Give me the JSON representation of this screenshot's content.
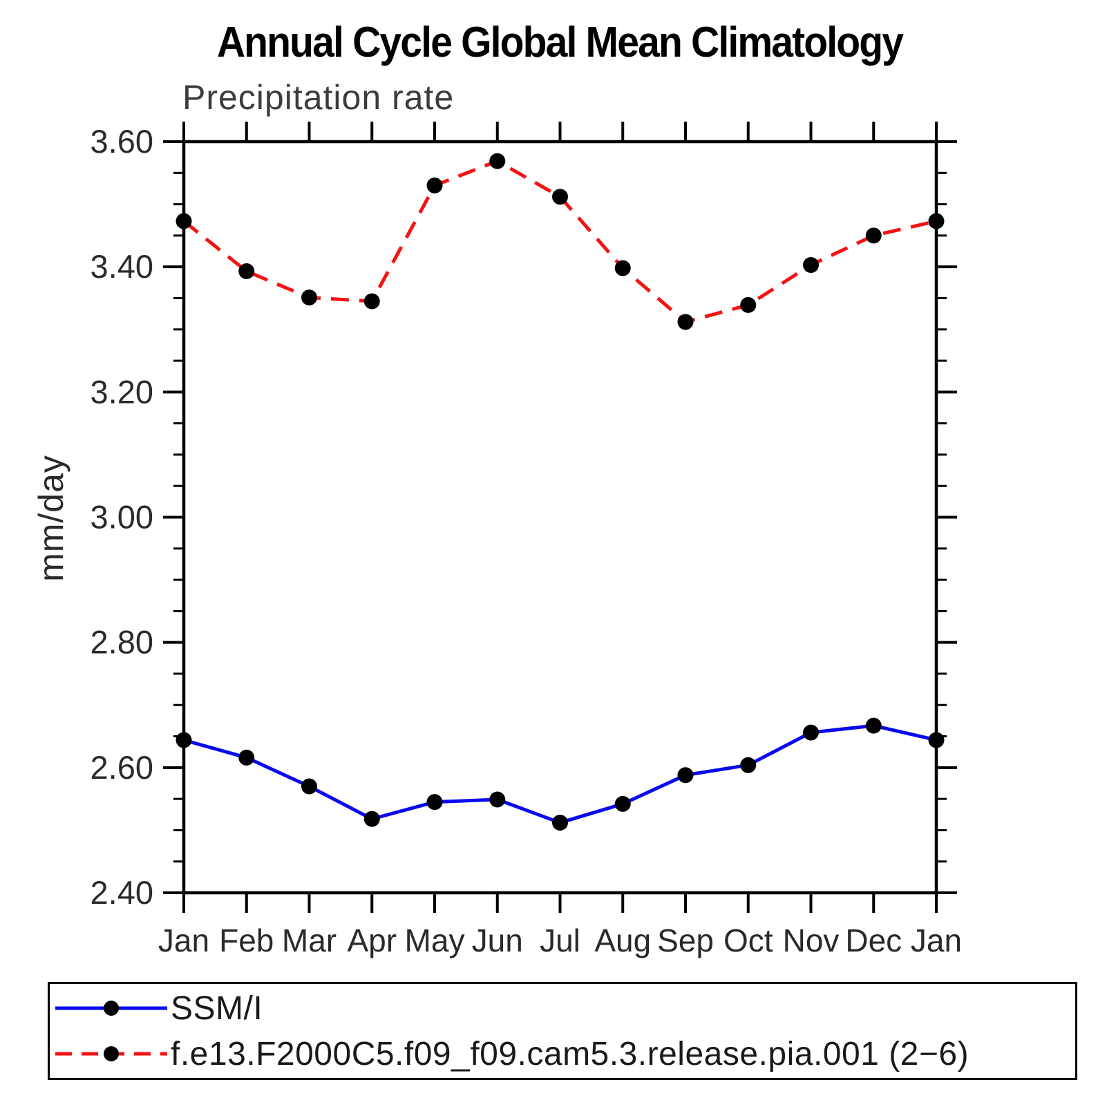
{
  "chart_data": {
    "type": "line",
    "title": "Annual Cycle Global Mean Climatology",
    "subtitle": "Precipitation rate",
    "ylabel": "mm/day",
    "xlabel": "",
    "categories": [
      "Jan",
      "Feb",
      "Mar",
      "Apr",
      "May",
      "Jun",
      "Jul",
      "Aug",
      "Sep",
      "Oct",
      "Nov",
      "Dec",
      "Jan"
    ],
    "series": [
      {
        "name": "SSM/I",
        "color": "#0a0af0",
        "line_style": "solid",
        "marker": "filled-circle",
        "marker_color": "#000000",
        "values": [
          2.644,
          2.616,
          2.57,
          2.518,
          2.545,
          2.549,
          2.512,
          2.542,
          2.588,
          2.604,
          2.656,
          2.667,
          2.644
        ]
      },
      {
        "name": "f.e13.F2000C5.f09_f09.cam5.3.release.pia.001 (2−6)",
        "color": "#f51212",
        "line_style": "dashed",
        "marker": "filled-circle",
        "marker_color": "#000000",
        "values": [
          3.473,
          3.393,
          3.351,
          3.345,
          3.53,
          3.569,
          3.512,
          3.398,
          3.312,
          3.339,
          3.403,
          3.45,
          3.473
        ]
      }
    ],
    "ylim": [
      2.4,
      3.6
    ],
    "ytick_major_interval": 0.2,
    "ytick_minor_interval": 0.05,
    "ytick_labels": [
      "2.40",
      "2.60",
      "2.80",
      "3.00",
      "3.20",
      "3.40",
      "3.60"
    ],
    "grid": false,
    "legend_position": "bottom",
    "frame": "box-with-outward-ticks",
    "axis_color": "#000000"
  }
}
